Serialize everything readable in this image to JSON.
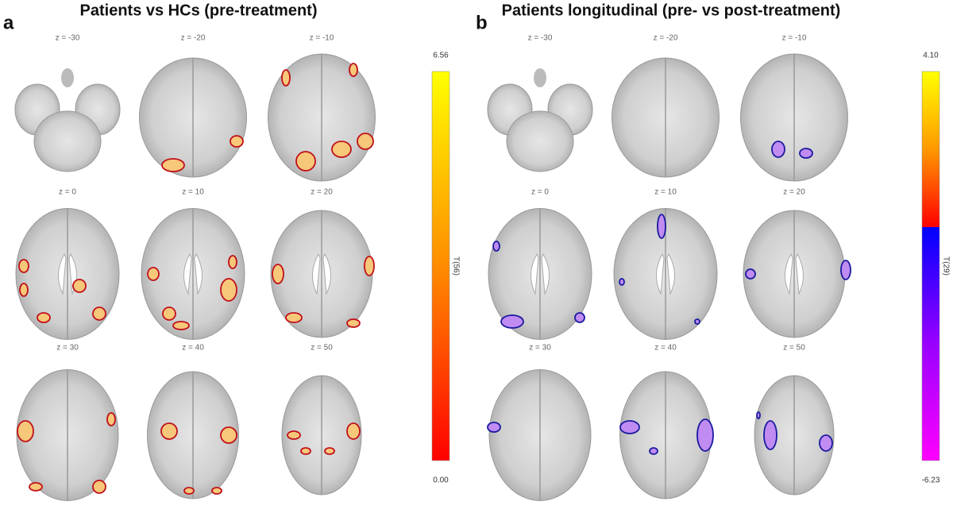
{
  "panels": [
    {
      "letter": "a",
      "title": "Patients vs HCs (pre-treatment)",
      "slices": [
        "z = -30",
        "z = -20",
        "z = -10",
        "z = 0",
        "z = 10",
        "z = 20",
        "z = 30",
        "z = 40",
        "z = 50"
      ],
      "colorbar": {
        "max": "6.56",
        "min": "0.00",
        "label": "T(56)"
      }
    },
    {
      "letter": "b",
      "title": "Patients longitudinal (pre- vs post-treatment)",
      "slices": [
        "z = -30",
        "z = -20",
        "z = -10",
        "z = 0",
        "z = 10",
        "z = 20",
        "z = 30",
        "z = 40",
        "z = 50"
      ],
      "colorbar": {
        "max": "4.10",
        "min": "-6.23",
        "label": "T(29)"
      }
    }
  ]
}
